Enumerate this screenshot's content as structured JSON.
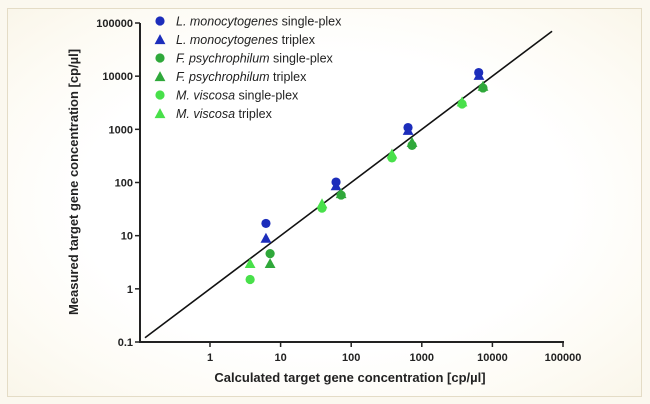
{
  "chart_data": {
    "type": "scatter",
    "title": "",
    "xlabel": "Calculated target gene concentration [cp/µl]",
    "ylabel": "Measured target gene concentration [cp/µl]",
    "xscale": "log",
    "yscale": "log",
    "xlim": [
      0.1,
      100000
    ],
    "ylim": [
      0.1,
      100000
    ],
    "x_ticks": [
      "1",
      "10",
      "100",
      "1000",
      "10000",
      "100000"
    ],
    "x_tick_values": [
      1,
      10,
      100,
      1000,
      10000,
      100000
    ],
    "y_ticks": [
      "0.1",
      "1",
      "10",
      "100",
      "1000",
      "10000",
      "100000"
    ],
    "y_tick_values": [
      0.1,
      1,
      10,
      100,
      1000,
      10000,
      100000
    ],
    "grid": false,
    "legend_position": "top-left",
    "reference_line": {
      "label": "identity line y = x",
      "from": 0.12,
      "to": 70000
    },
    "series": [
      {
        "name": "L. monocytogenes single-plex",
        "italic": "L. monocytogenes",
        "suffix": " single-plex",
        "marker": "circle",
        "color": "#1c2dbb",
        "points": [
          [
            6.2,
            17
          ],
          [
            61,
            102
          ],
          [
            638,
            1080
          ],
          [
            6400,
            11700
          ]
        ]
      },
      {
        "name": "L. monocytogenes triplex",
        "italic": "L. monocytogenes",
        "suffix": " triplex",
        "marker": "triangle",
        "color": "#1c2dbb",
        "points": [
          [
            6.2,
            9
          ],
          [
            61,
            87
          ],
          [
            640,
            960
          ],
          [
            6450,
            10400
          ]
        ]
      },
      {
        "name": "F. psychrophilum single-plex",
        "italic": "F. psychrophilum",
        "suffix": " single-plex",
        "marker": "circle",
        "color": "#2fa83a",
        "points": [
          [
            7.1,
            4.6
          ],
          [
            72,
            58
          ],
          [
            727,
            500
          ],
          [
            7360,
            6000
          ]
        ]
      },
      {
        "name": "F. psychrophilum triplex",
        "italic": "F. psychrophilum",
        "suffix": " triplex",
        "marker": "triangle",
        "color": "#2fa83a",
        "points": [
          [
            7.1,
            3.0
          ],
          [
            72,
            62
          ],
          [
            727,
            570
          ],
          [
            7360,
            6500
          ]
        ]
      },
      {
        "name": "M. viscosa single-plex",
        "italic": "M. viscosa",
        "suffix": " single-plex",
        "marker": "circle",
        "color": "#48e04a",
        "points": [
          [
            3.7,
            1.5
          ],
          [
            38.6,
            33
          ],
          [
            378,
            290
          ],
          [
            3720,
            3000
          ]
        ]
      },
      {
        "name": "M. viscosa triplex",
        "italic": "M. viscosa",
        "suffix": " triplex",
        "marker": "triangle",
        "color": "#48e04a",
        "points": [
          [
            3.7,
            3.0
          ],
          [
            38.6,
            40
          ],
          [
            378,
            345
          ],
          [
            3720,
            3300
          ]
        ]
      }
    ]
  }
}
